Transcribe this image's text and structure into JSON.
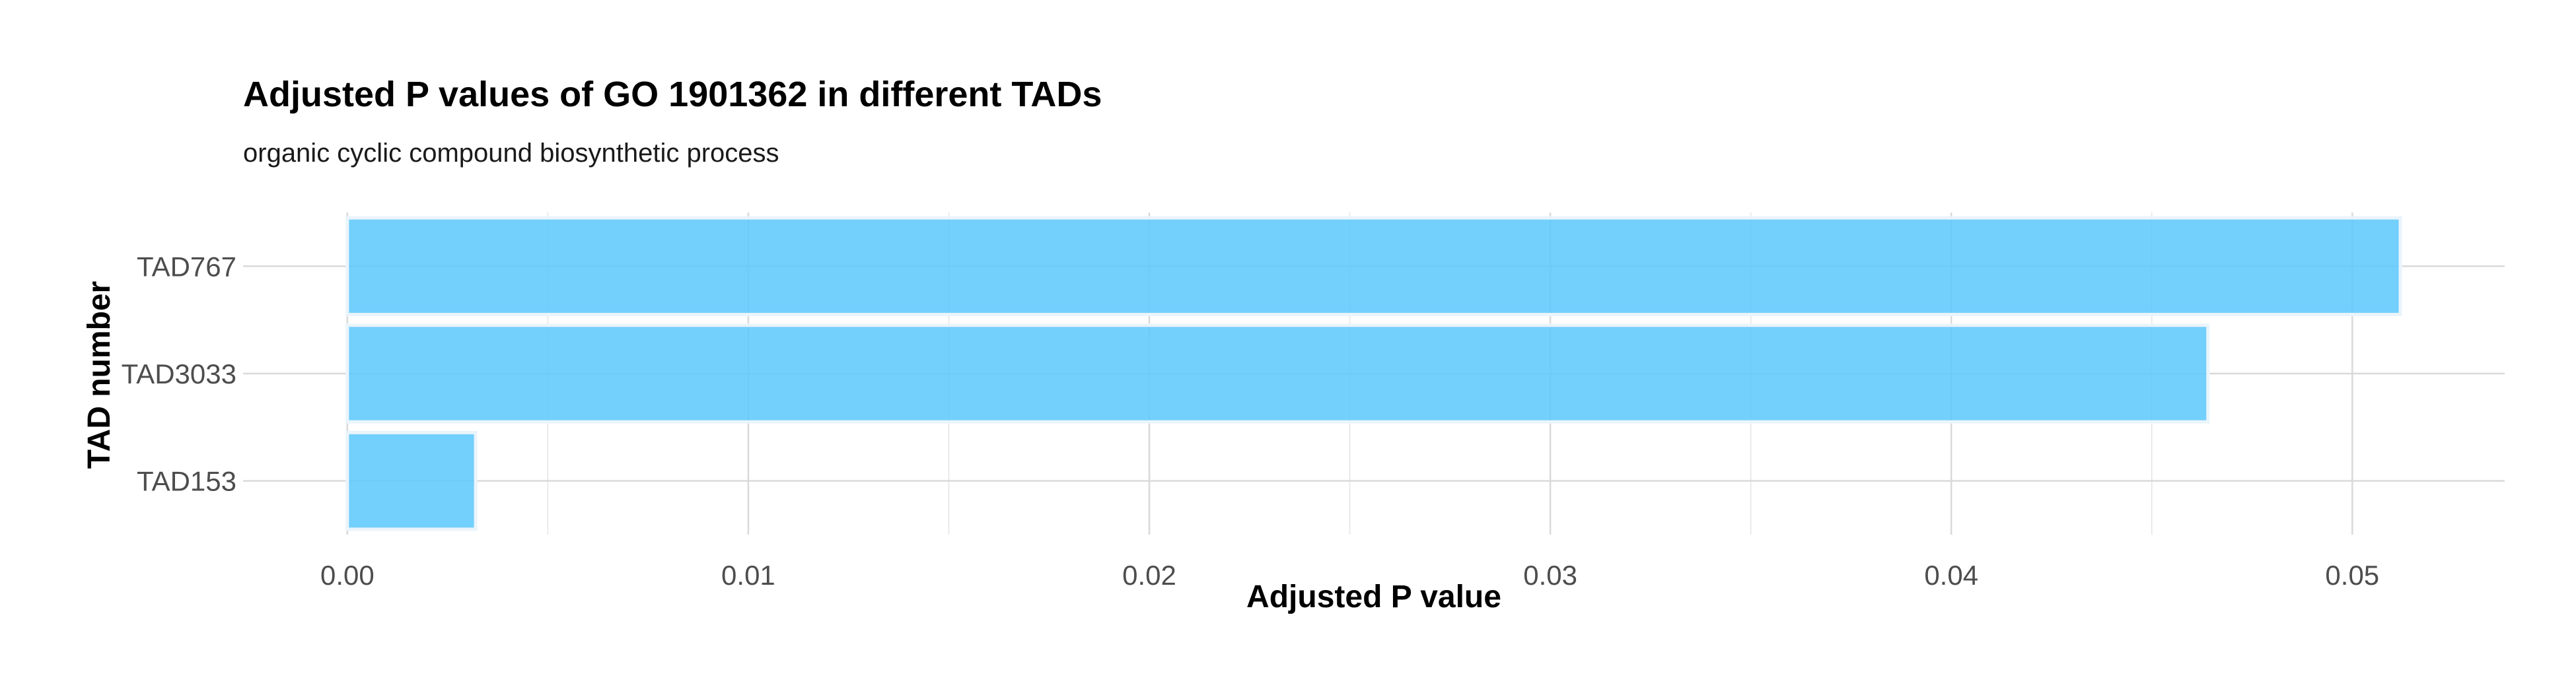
{
  "chart_data": {
    "type": "bar",
    "orientation": "horizontal",
    "title": "Adjusted P values of GO 1901362 in different TADs",
    "subtitle": "organic cyclic compound biosynthetic process",
    "xlabel": "Adjusted P value",
    "ylabel": "TAD number",
    "categories": [
      "TAD767",
      "TAD3033",
      "TAD153"
    ],
    "values": [
      0.0512,
      0.0464,
      0.0032
    ],
    "xlim": [
      -0.0026,
      0.0538
    ],
    "x_ticks": [
      0.0,
      0.01,
      0.02,
      0.03,
      0.04,
      0.05
    ],
    "x_tick_labels": [
      "0.00",
      "0.01",
      "0.02",
      "0.03",
      "0.04",
      "0.05"
    ],
    "grid": true,
    "legend": "none",
    "colors": {
      "bar": "#5BC8FB",
      "bar_edge": "#EAF4FB",
      "grid": "#D9D9D9",
      "text": "#4D4D4D"
    }
  }
}
